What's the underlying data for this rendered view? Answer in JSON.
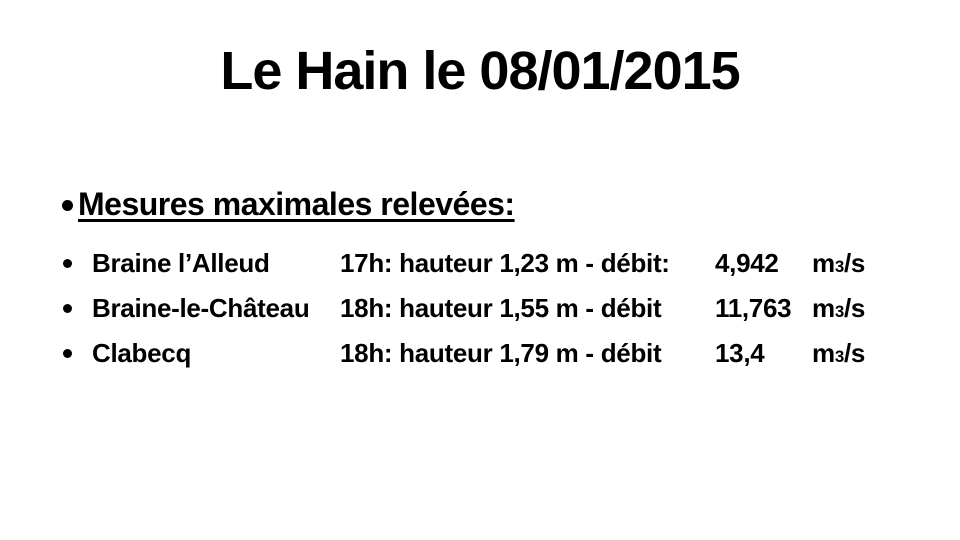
{
  "slide": {
    "title": "Le Hain le 08/01/2015",
    "heading": "Mesures maximales relevées:",
    "rows": [
      {
        "station": "Braine l’Alleud",
        "details": "17h: hauteur 1,23 m - débit:",
        "value": "4,942"
      },
      {
        "station": "Braine-le-Château",
        "details": "18h: hauteur 1,55 m - débit",
        "value": "11,763"
      },
      {
        "station": "Clabecq",
        "details": "18h: hauteur 1,79 m - débit",
        "value": "13,4"
      }
    ],
    "unit": {
      "base": "m",
      "sub": "3",
      "rest": "/s"
    },
    "colors": {
      "text": "#000000",
      "background": "#ffffff"
    }
  }
}
